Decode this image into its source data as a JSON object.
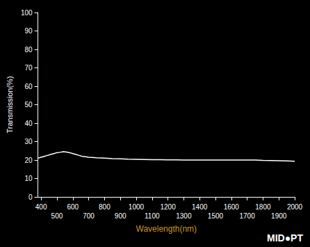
{
  "chart_data": {
    "type": "line",
    "xlabel": "Wavelength(nm)",
    "ylabel": "Transmission(%)",
    "annotation": "MID●PT",
    "color": "#ffffff",
    "x": [
      380,
      400,
      420,
      440,
      460,
      480,
      500,
      520,
      540,
      560,
      580,
      600,
      620,
      640,
      660,
      680,
      700,
      750,
      800,
      850,
      900,
      950,
      1000,
      1050,
      1100,
      1150,
      1200,
      1250,
      1300,
      1350,
      1400,
      1450,
      1500,
      1550,
      1600,
      1650,
      1700,
      1750,
      1800,
      1850,
      1900,
      1950,
      2000
    ],
    "values": [
      21.0,
      21.5,
      22.0,
      22.5,
      23.0,
      23.5,
      24.0,
      24.2,
      24.5,
      24.3,
      24.0,
      23.5,
      23.0,
      22.5,
      22.0,
      21.8,
      21.5,
      21.2,
      21.0,
      20.8,
      20.7,
      20.5,
      20.4,
      20.3,
      20.2,
      20.2,
      20.1,
      20.1,
      20.0,
      20.0,
      20.0,
      20.0,
      20.0,
      20.0,
      20.0,
      20.0,
      20.0,
      20.0,
      19.8,
      19.7,
      19.6,
      19.5,
      19.3
    ],
    "xlim": [
      380,
      2000
    ],
    "xticks": [
      400,
      500,
      600,
      700,
      800,
      900,
      1000,
      1100,
      1200,
      1300,
      1400,
      1500,
      1600,
      1700,
      1800,
      1900,
      2000
    ],
    "ylim": [
      0,
      100
    ],
    "yticks": [
      0,
      10,
      20,
      30,
      40,
      50,
      60,
      70,
      80,
      90,
      100
    ],
    "grid": false
  }
}
